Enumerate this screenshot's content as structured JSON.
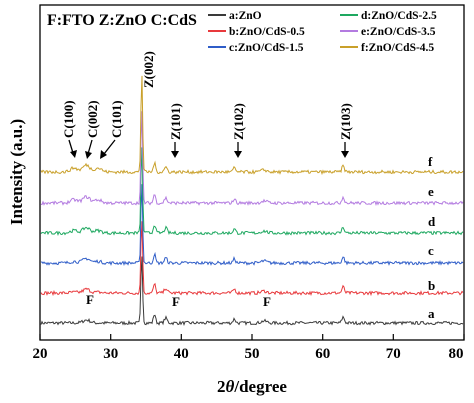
{
  "chart_data": {
    "type": "line",
    "header": "F:FTO Z:ZnO C:CdS",
    "xlabel_prefix": "2",
    "xlabel_theta": "θ",
    "xlabel_suffix": "/degree",
    "ylabel": "Intensity (a.u.)",
    "xlim": [
      20,
      80
    ],
    "xticks": [
      "20",
      "30",
      "40",
      "50",
      "60",
      "70",
      "80"
    ],
    "grid": false,
    "legend_position": "top",
    "series": [
      {
        "name": "a:ZnO",
        "label": "a",
        "color": "#3a3a3a"
      },
      {
        "name": "b:ZnO/CdS-0.5",
        "label": "b",
        "color": "#e8393c"
      },
      {
        "name": "c:ZnO/CdS-1.5",
        "label": "c",
        "color": "#2f5dc8"
      },
      {
        "name": "d:ZnO/CdS-2.5",
        "label": "d",
        "color": "#1ea860"
      },
      {
        "name": "e:ZnO/CdS-3.5",
        "label": "e",
        "color": "#b37be0"
      },
      {
        "name": "f:ZnO/CdS-4.5",
        "label": "f",
        "color": "#c9a02a"
      }
    ],
    "zno_peaks": [
      {
        "x": 34.4,
        "label": "Z(002)"
      },
      {
        "x": 36.2,
        "label": "Z(101)"
      },
      {
        "x": 47.5,
        "label": "Z(102)"
      },
      {
        "x": 62.9,
        "label": "Z(103)"
      }
    ],
    "cds_peaks": [
      {
        "x": 24.8,
        "label": "C(100)"
      },
      {
        "x": 26.5,
        "label": "C(002)"
      },
      {
        "x": 28.2,
        "label": "C(101)"
      }
    ],
    "fto_peaks": [
      {
        "x": 26.6,
        "label": "F"
      },
      {
        "x": 37.8,
        "label": "F"
      },
      {
        "x": 51.7,
        "label": "F"
      }
    ]
  }
}
